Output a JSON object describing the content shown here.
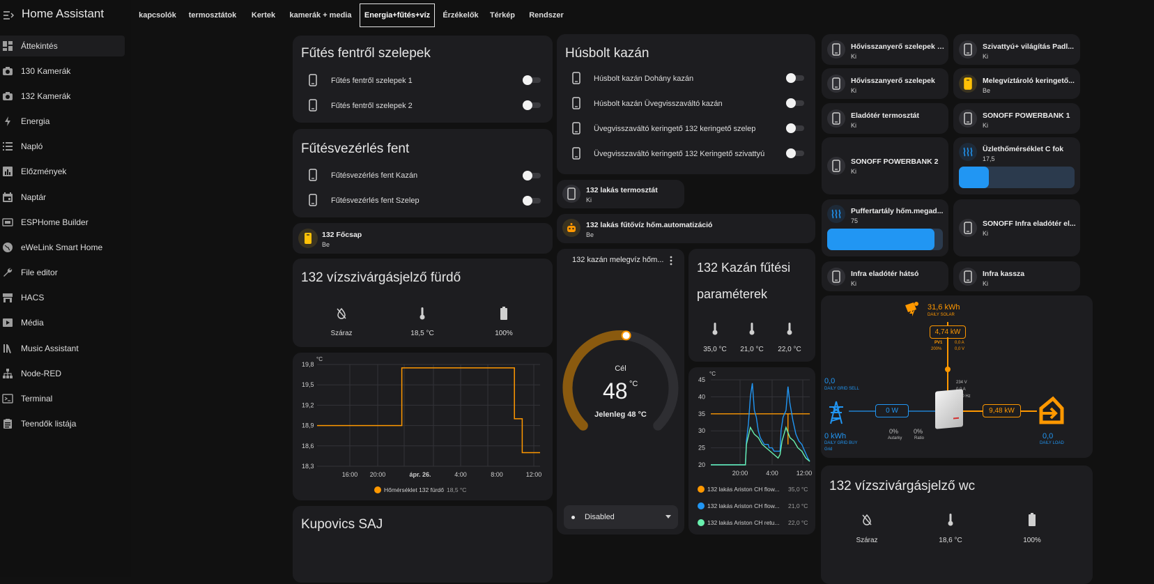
{
  "app": {
    "title": "Home Assistant"
  },
  "sidebar": {
    "items": [
      {
        "label": "Áttekintés",
        "icon": "dashboard-icon"
      },
      {
        "label": "130 Kamerák",
        "icon": "camera-icon"
      },
      {
        "label": "132 Kamerák",
        "icon": "camera-icon"
      },
      {
        "label": "Energia",
        "icon": "lightning-icon"
      },
      {
        "label": "Napló",
        "icon": "list-icon"
      },
      {
        "label": "Előzmények",
        "icon": "chart-box-icon"
      },
      {
        "label": "Naptár",
        "icon": "calendar-icon"
      },
      {
        "label": "ESPHome Builder",
        "icon": "esphome-icon"
      },
      {
        "label": "eWeLink Smart Home",
        "icon": "globe-icon"
      },
      {
        "label": "File editor",
        "icon": "wrench-icon"
      },
      {
        "label": "HACS",
        "icon": "hacs-icon"
      },
      {
        "label": "Média",
        "icon": "media-icon"
      },
      {
        "label": "Music Assistant",
        "icon": "library-icon"
      },
      {
        "label": "Node-RED",
        "icon": "sitemap-icon"
      },
      {
        "label": "Terminal",
        "icon": "console-icon"
      },
      {
        "label": "Teendők listája",
        "icon": "clipboard-list-icon"
      }
    ]
  },
  "tabs": [
    "kapcsolók",
    "termosztátok",
    "Kertek",
    "kamerák + media",
    "Energia+fűtés+víz",
    "Érzékelők",
    "Térkép",
    "Rendszer"
  ],
  "col1": {
    "card1": {
      "title": "Fűtés fentről szelepek",
      "rows": [
        "Fűtés fentről szelepek 1",
        "Fűtés fentről szelepek 2"
      ]
    },
    "card2": {
      "title": "Fűtésvezérlés fent",
      "rows": [
        "Fűtésvezérlés fent Kazán",
        "Fűtésvezérlés fent Szelep"
      ]
    },
    "focsap": {
      "name": "132 Főcsap",
      "state": "Be"
    },
    "leak": {
      "title": "132 vízszivárgásjelző fürdő",
      "values": [
        "Száraz",
        "18,5 °C",
        "100%"
      ]
    },
    "kupovics": {
      "title": "Kupovics SAJ"
    }
  },
  "col2": {
    "husbolt": {
      "title": "Húsbolt kazán",
      "rows": [
        "Húsbolt kazán Dohány kazán",
        "Húsbolt kazán Üvegvisszaváltó kazán",
        "Üvegvisszaváltó keringető 132 keringető szelep",
        "Üvegvisszaváltó keringető 132 Keringető szivattyú"
      ]
    },
    "therm": {
      "name": "132 lakás termosztát",
      "state": "Ki"
    },
    "auto": {
      "name": "132 lakás fűtővíz hőm.automatizáció",
      "state": "Be"
    },
    "boiler": {
      "title": "132 kazán melegvíz hőm...",
      "target_label": "Cél",
      "value": "48",
      "unit": "°C",
      "current": "Jelenleg 48 °C",
      "mode": "Disabled",
      "level_pct": 78
    },
    "params": {
      "title_line1": "132 Kazán fűtési",
      "title_line2": "paraméterek",
      "values": [
        "35,0 °C",
        "21,0 °C",
        "22,0 °C"
      ]
    }
  },
  "tiles": [
    {
      "name": "Hővisszanyerő szelepek F...",
      "state": "Ki",
      "icon": "cellphone-icon"
    },
    {
      "name": "Szivattyú+ világítás Padl...",
      "state": "Ki",
      "icon": "cellphone-icon"
    },
    {
      "name": "Hővisszanyerő szelepek",
      "state": "Ki",
      "icon": "cellphone-icon"
    },
    {
      "name": "Melegvíztároló keringető...",
      "state": "Be",
      "icon": "cellphone-icon"
    },
    {
      "name": "Eladótér termosztát",
      "state": "Ki",
      "icon": "cellphone-icon"
    },
    {
      "name": "SONOFF POWERBANK 1",
      "state": "Ki",
      "icon": "cellphone-icon"
    },
    {
      "name": "SONOFF POWERBANK 2",
      "state": "Ki",
      "icon": "cellphone-icon"
    },
    {
      "name": "Üzlethőmérséklet C fok",
      "state": "17,5",
      "icon": "heat-wave-icon"
    },
    {
      "name": "Puffertartály hőm.megad...",
      "state": "75",
      "icon": "heat-wave-icon"
    },
    {
      "name": "SONOFF Infra eladótér el...",
      "state": "Ki",
      "icon": "cellphone-icon"
    },
    {
      "name": "Infra eladótér hátsó",
      "state": "Ki",
      "icon": "cellphone-icon"
    },
    {
      "name": "Infra kassza",
      "state": "Ki",
      "icon": "cellphone-icon"
    }
  ],
  "bars": {
    "uzlet_fill": 0.26,
    "puffer_fill": 0.93
  },
  "energy": {
    "solar_kwh": "31,6 kWh",
    "solar_label": "DAILY SOLAR",
    "pv_power": "4,74 kW",
    "pv_name": "PV1",
    "pv_pct": "200%",
    "pv_a": "0,0 A",
    "pv_v": "0,0 V",
    "inv_v": "234 V",
    "inv_a": "0,0 A",
    "inv_hz": "0,00 Hz",
    "grid_sell": "0,0",
    "grid_sell_label": "DAILY GRID SELL",
    "grid_buy": "0 kWh",
    "grid_buy_label": "DAILY GRID BUY",
    "grid_label": "Grid",
    "grid_power": "0 W",
    "autarky": "0%",
    "autarky_label": "Autarky",
    "ratio": "0%",
    "ratio_label": "Ratio",
    "load_power": "9,48 kW",
    "load_kwh": "0,0",
    "load_label": "DAILY LOAD"
  },
  "leak_wc": {
    "title": "132 vízszivárgásjelző wc",
    "values": [
      "Száraz",
      "18,6 °C",
      "100%"
    ]
  },
  "chart_data": [
    {
      "type": "line",
      "title": "",
      "ylabel": "°C",
      "ylim": [
        18.3,
        19.8
      ],
      "yticks": [
        "19,8",
        "19,5",
        "19,2",
        "18,9",
        "18,6",
        "18,3"
      ],
      "xticks": [
        "16:00",
        "20:00",
        "ápr. 26.",
        "4:00",
        "8:00",
        "12:00"
      ],
      "series": [
        {
          "name": "Hőmérséklet 132 fürdő",
          "value_label": "18,5 °C",
          "color": "#ff9800",
          "points": [
            [
              0,
              18.9
            ],
            [
              0.38,
              18.9
            ],
            [
              0.38,
              19.75
            ],
            [
              0.885,
              19.75
            ],
            [
              0.885,
              19.0
            ],
            [
              0.92,
              19.0
            ],
            [
              0.92,
              18.5
            ],
            [
              1,
              18.5
            ]
          ]
        }
      ]
    },
    {
      "type": "line",
      "title": "",
      "ylabel": "°C",
      "ylim": [
        20,
        45
      ],
      "yticks": [
        "45",
        "40",
        "35",
        "30",
        "25",
        "20"
      ],
      "xticks": [
        "20:00",
        "4:00",
        "12:00"
      ],
      "series": [
        {
          "name": "132 lakás Ariston CH flow...",
          "value_label": "35,0 °C",
          "color": "#ff9800"
        },
        {
          "name": "132 lakás Ariston CH flow...",
          "value_label": "21,0 °C",
          "color": "#2196f3"
        },
        {
          "name": "132 lakás Ariston CH retu...",
          "value_label": "22,0 °C",
          "color": "#69f0ae"
        }
      ]
    }
  ]
}
